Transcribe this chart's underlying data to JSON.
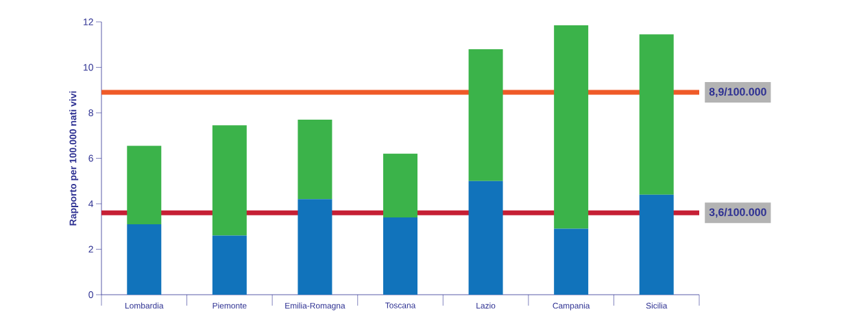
{
  "chart_data": {
    "type": "bar",
    "stacked": true,
    "ylabel": "Rapporto per 100.000 nati vivi",
    "categories": [
      "Lombardia",
      "Piemonte",
      "Emilia-Romagna",
      "Toscana",
      "Lazio",
      "Campania",
      "Sicilia"
    ],
    "series": [
      {
        "color": "#1173bb",
        "values": [
          3.1,
          2.6,
          4.2,
          3.4,
          5.0,
          2.9,
          4.4
        ]
      },
      {
        "color": "#3bb34a",
        "values": [
          3.45,
          4.85,
          3.5,
          2.8,
          5.8,
          8.95,
          7.05
        ]
      }
    ],
    "ylim": [
      0,
      12
    ],
    "yticks": [
      0,
      2,
      4,
      6,
      8,
      10,
      12
    ],
    "ref_lines": [
      {
        "axis": "y",
        "value": 8.9,
        "label": "8,9/100.000",
        "color": "#ef5a28"
      },
      {
        "axis": "y",
        "value": 3.6,
        "label": "3,6/100.000",
        "color": "#c61f35"
      }
    ]
  }
}
